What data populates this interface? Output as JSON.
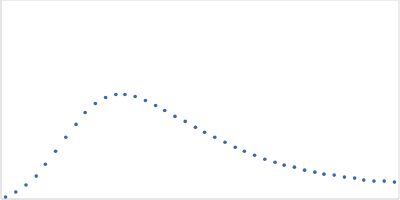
{
  "chart_data": {
    "type": "scatter",
    "x": [
      0.04,
      0.13,
      0.22,
      0.31,
      0.39,
      0.48,
      0.57,
      0.66,
      0.74,
      0.83,
      0.92,
      1.01,
      1.09,
      1.18,
      1.27,
      1.36,
      1.44,
      1.53,
      1.62,
      1.71,
      1.79,
      1.88,
      1.97,
      2.06,
      2.14,
      2.23,
      2.32,
      2.41,
      2.49,
      2.58,
      2.67,
      2.76,
      2.84,
      2.93,
      3.02,
      3.11,
      3.19,
      3.28,
      3.37,
      3.46
    ],
    "values": [
      0.02,
      0.07,
      0.14,
      0.23,
      0.35,
      0.48,
      0.62,
      0.75,
      0.87,
      0.96,
      1.02,
      1.05,
      1.05,
      1.03,
      0.99,
      0.94,
      0.89,
      0.83,
      0.78,
      0.72,
      0.67,
      0.62,
      0.57,
      0.52,
      0.48,
      0.44,
      0.4,
      0.37,
      0.34,
      0.32,
      0.29,
      0.27,
      0.25,
      0.24,
      0.22,
      0.21,
      0.19,
      0.18,
      0.18,
      0.17
    ],
    "color": "#3a65b0",
    "marker": "circle",
    "xlim": [
      0,
      3.5
    ],
    "ylim": [
      0,
      2
    ],
    "xticks": [
      1
    ],
    "yticks": [
      1
    ],
    "grid": true,
    "tick_labels": false
  }
}
